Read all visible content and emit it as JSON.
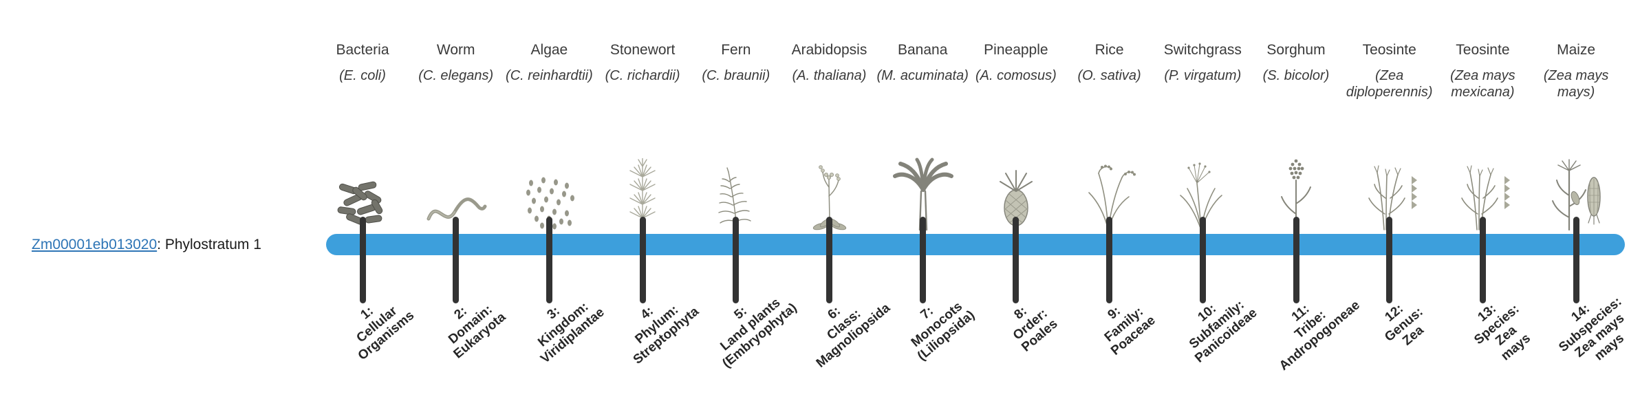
{
  "gene": {
    "id": "Zm00001eb013020",
    "suffix": ": Phylostratum 1"
  },
  "theme": {
    "bar_color": "#3d9fdc",
    "tick_color": "#333333",
    "link_color": "#2e75b6",
    "text_color": "#3a3a3a",
    "rank_text_color": "#262626"
  },
  "strata": [
    {
      "name": "Bacteria",
      "sci": "(E. coli)",
      "icon": "bacteria-icon",
      "rank": "1:\nCellular\nOrganisms"
    },
    {
      "name": "Worm",
      "sci": "(C. elegans)",
      "icon": "worm-icon",
      "rank": "2:\nDomain:\nEukaryota"
    },
    {
      "name": "Algae",
      "sci": "(C. reinhardtii)",
      "icon": "algae-icon",
      "rank": "3:\nKingdom:\nViridiplantae"
    },
    {
      "name": "Stonewort",
      "sci": "(C. richardii)",
      "icon": "stonewort-icon",
      "rank": "4:\nPhylum:\nStreptophyta"
    },
    {
      "name": "Fern",
      "sci": "(C. braunii)",
      "icon": "fern-icon",
      "rank": "5:\nLand plants\n(Embryophyta)"
    },
    {
      "name": "Arabidopsis",
      "sci": "(A. thaliana)",
      "icon": "arabidopsis-icon",
      "rank": "6:\nClass:\nMagnoliopsida"
    },
    {
      "name": "Banana",
      "sci": "(M. acuminata)",
      "icon": "banana-icon",
      "rank": "7:\nMonocots\n(Liliopsida)"
    },
    {
      "name": "Pineapple",
      "sci": "(A. comosus)",
      "icon": "pineapple-icon",
      "rank": "8:\nOrder:\nPoales"
    },
    {
      "name": "Rice",
      "sci": "(O. sativa)",
      "icon": "rice-icon",
      "rank": "9:\nFamily:\nPoaceae"
    },
    {
      "name": "Switchgrass",
      "sci": "(P. virgatum)",
      "icon": "switchgrass-icon",
      "rank": "10:\nSubfamily:\nPanicoideae"
    },
    {
      "name": "Sorghum",
      "sci": "(S. bicolor)",
      "icon": "sorghum-icon",
      "rank": "11:\nTribe:\nAndropogoneae"
    },
    {
      "name": "Teosinte",
      "sci": "(Zea diploperennis)",
      "icon": "teosinte-icon",
      "rank": "12:\nGenus:\nZea"
    },
    {
      "name": "Teosinte",
      "sci": "(Zea mays mexicana)",
      "icon": "teosinte-icon",
      "rank": "13:\nSpecies:\nZea\nmays"
    },
    {
      "name": "Maize",
      "sci": "(Zea mays mays)",
      "icon": "maize-icon",
      "rank": "14:\nSubspecies:\nZea mays\nmays"
    }
  ]
}
